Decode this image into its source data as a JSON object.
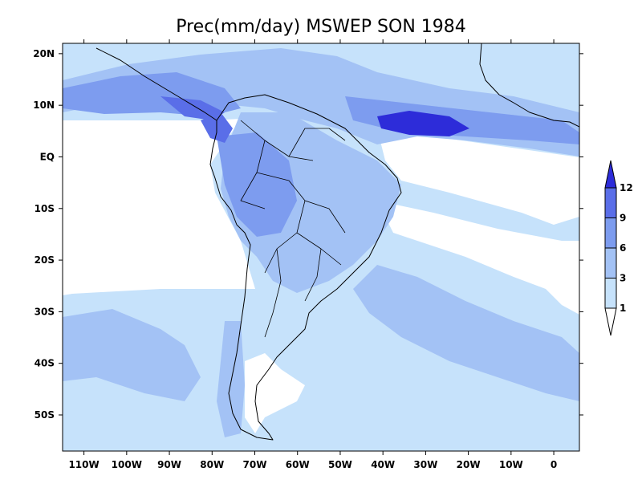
{
  "title": "Prec(mm/day) MSWEP SON 1984",
  "map": {
    "projection": "lat-lon",
    "lon_range": [
      -115,
      6
    ],
    "lat_range": [
      -57,
      22
    ],
    "lon_ticks": [
      {
        "value": -110,
        "label": "110W"
      },
      {
        "value": -100,
        "label": "100W"
      },
      {
        "value": -90,
        "label": "90W"
      },
      {
        "value": -80,
        "label": "80W"
      },
      {
        "value": -70,
        "label": "70W"
      },
      {
        "value": -60,
        "label": "60W"
      },
      {
        "value": -50,
        "label": "50W"
      },
      {
        "value": -40,
        "label": "40W"
      },
      {
        "value": -30,
        "label": "30W"
      },
      {
        "value": -20,
        "label": "20W"
      },
      {
        "value": -10,
        "label": "10W"
      },
      {
        "value": 0,
        "label": "0"
      }
    ],
    "lat_ticks": [
      {
        "value": 20,
        "label": "20N"
      },
      {
        "value": 10,
        "label": "10N"
      },
      {
        "value": 0,
        "label": "EQ"
      },
      {
        "value": -10,
        "label": "10S"
      },
      {
        "value": -20,
        "label": "20S"
      },
      {
        "value": -30,
        "label": "30S"
      },
      {
        "value": -40,
        "label": "40S"
      },
      {
        "value": -50,
        "label": "50S"
      }
    ]
  },
  "colorbar": {
    "levels": [
      "1",
      "3",
      "6",
      "9",
      "12"
    ],
    "colors": [
      "#ffffff",
      "#c6e2fb",
      "#a3c2f5",
      "#7d9cef",
      "#5a6ee8",
      "#2d2cd9"
    ]
  },
  "field_regions": {
    "bg": "#c6e2fb",
    "dry": "#ffffff",
    "l2": "#a3c2f5",
    "l3": "#7d9cef",
    "l4": "#5a6ee8",
    "l5": "#2d2cd9"
  }
}
